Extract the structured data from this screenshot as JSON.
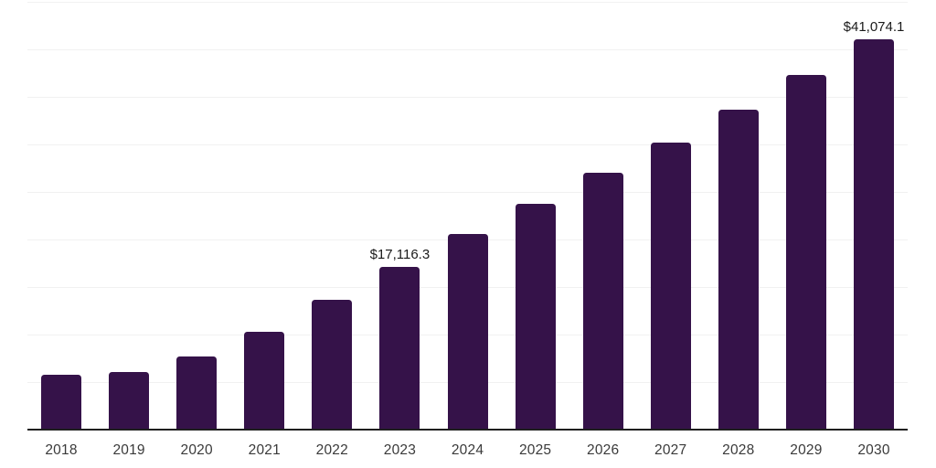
{
  "chart_data": {
    "type": "bar",
    "title": "",
    "xlabel": "",
    "ylabel": "",
    "categories": [
      "2018",
      "2019",
      "2020",
      "2021",
      "2022",
      "2023",
      "2024",
      "2025",
      "2026",
      "2027",
      "2028",
      "2029",
      "2030"
    ],
    "values": [
      5700,
      6000,
      7700,
      10300,
      13600,
      17116.3,
      20550,
      23700,
      27000,
      30200,
      33600,
      37300,
      41074.1
    ],
    "annotations": [
      {
        "category": "2023",
        "text": "$17,116.3"
      },
      {
        "category": "2030",
        "text": "$41,074.1"
      }
    ],
    "ylim": [
      0,
      45000
    ],
    "gridline_step": 5000,
    "grid": "horizontal-only",
    "legend": "none",
    "y_tick_labels_visible": false,
    "colors": {
      "bar": "#351249",
      "gridline": "#f1f1f1",
      "axis": "#1f1f1f",
      "tick_label": "#3a3a3a",
      "data_label": "#1a1a1a",
      "background": "#ffffff"
    }
  }
}
